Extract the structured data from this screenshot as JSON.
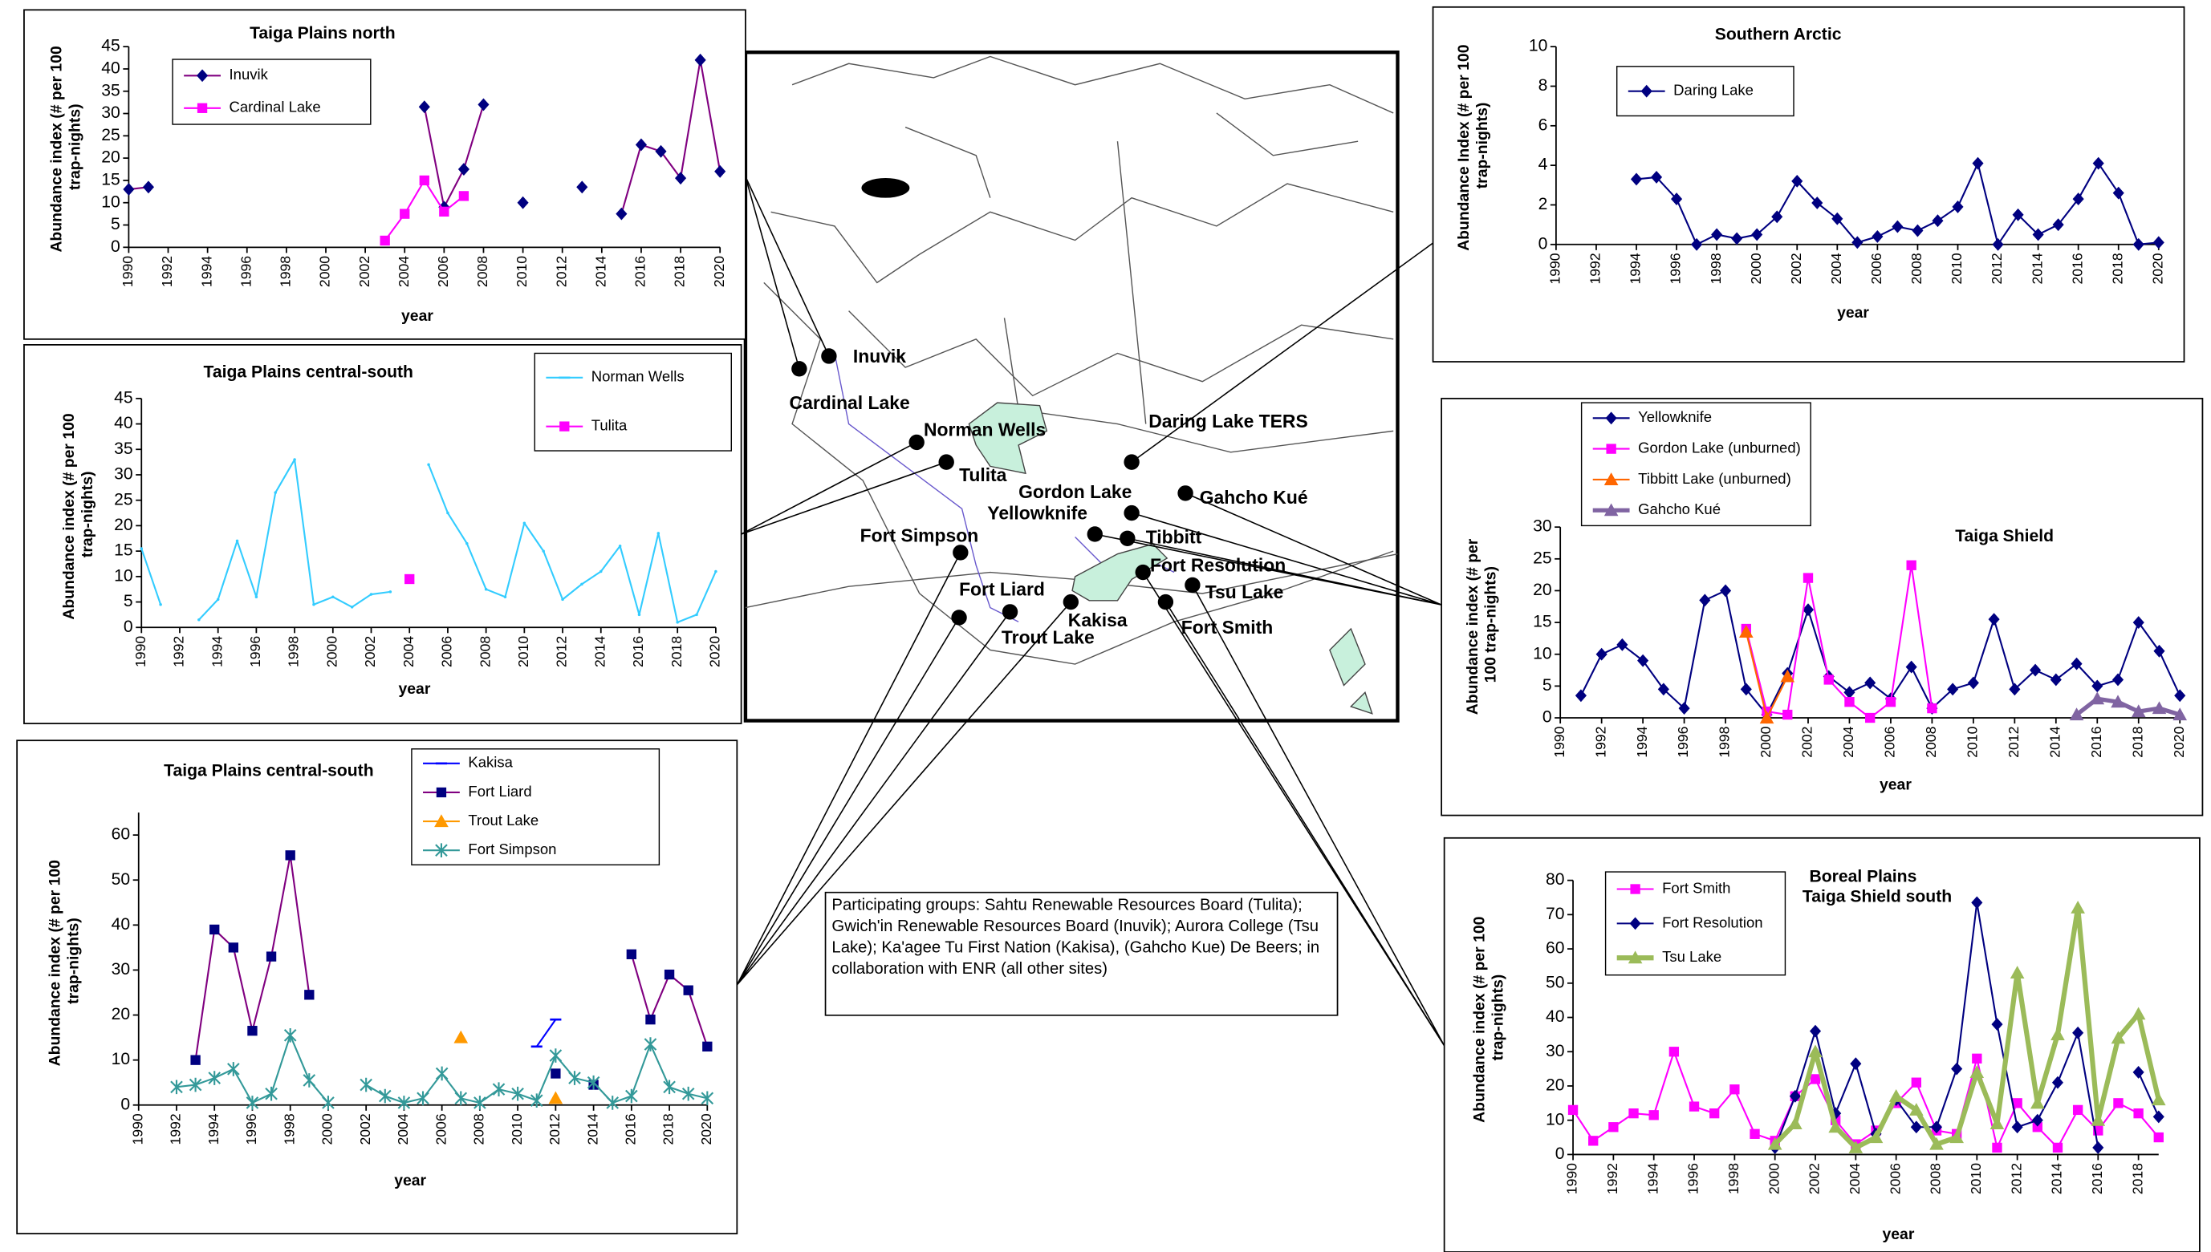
{
  "chart_data": [
    {
      "type": "line",
      "title": "Taiga Plains north",
      "ylabel": "Abundance index (# per 100 trap-nights)",
      "xlabel": "year",
      "x": [
        1990,
        1991,
        1992,
        1993,
        1994,
        1995,
        1996,
        1997,
        1998,
        1999,
        2000,
        2001,
        2002,
        2003,
        2004,
        2005,
        2006,
        2007,
        2008,
        2009,
        2010,
        2011,
        2012,
        2013,
        2014,
        2015,
        2016,
        2017,
        2018,
        2019,
        2020
      ],
      "xlim": [
        1990,
        2020
      ],
      "xticks": [
        1990,
        1992,
        1994,
        1996,
        1998,
        2000,
        2002,
        2004,
        2006,
        2008,
        2010,
        2012,
        2014,
        2016,
        2018,
        2020
      ],
      "ylim": [
        0,
        45
      ],
      "yticks": [
        0,
        5,
        10,
        15,
        20,
        25,
        30,
        35,
        40,
        45
      ],
      "series": [
        {
          "name": "Inuvik",
          "color": "#800080",
          "marker_color": "#000080",
          "marker": "diamond",
          "values": [
            13,
            13.5,
            null,
            null,
            null,
            null,
            null,
            null,
            null,
            null,
            null,
            null,
            null,
            null,
            null,
            31.5,
            9,
            17.5,
            32,
            null,
            10,
            null,
            null,
            13.5,
            null,
            7.5,
            23,
            21.5,
            15.5,
            42,
            17
          ]
        },
        {
          "name": "Cardinal Lake",
          "color": "#ff00ff",
          "marker": "square",
          "values": [
            null,
            null,
            null,
            null,
            null,
            null,
            null,
            null,
            null,
            null,
            null,
            null,
            null,
            1.5,
            7.5,
            15,
            8,
            11.5,
            null,
            null,
            null,
            null,
            null,
            null,
            null,
            null,
            null,
            null,
            null,
            null,
            null
          ]
        }
      ]
    },
    {
      "type": "line",
      "title": "Taiga Plains central-south",
      "ylabel": "Abundance index (# per 100 trap-nights)",
      "xlabel": "year",
      "x": [
        1990,
        1991,
        1992,
        1993,
        1994,
        1995,
        1996,
        1997,
        1998,
        1999,
        2000,
        2001,
        2002,
        2003,
        2004,
        2005,
        2006,
        2007,
        2008,
        2009,
        2010,
        2011,
        2012,
        2013,
        2014,
        2015,
        2016,
        2017,
        2018,
        2019,
        2020
      ],
      "xlim": [
        1990,
        2020
      ],
      "xticks": [
        1990,
        1992,
        1994,
        1996,
        1998,
        2000,
        2002,
        2004,
        2006,
        2008,
        2010,
        2012,
        2014,
        2016,
        2018,
        2020
      ],
      "ylim": [
        0,
        45
      ],
      "yticks": [
        0,
        5,
        10,
        15,
        20,
        25,
        30,
        35,
        40,
        45
      ],
      "series": [
        {
          "name": "Norman Wells",
          "color": "#33ccff",
          "marker": "none",
          "values": [
            15.5,
            4.5,
            null,
            1.5,
            5.5,
            17,
            6,
            26.5,
            33,
            4.5,
            6,
            4,
            6.5,
            7,
            null,
            32,
            22.5,
            16.5,
            7.5,
            6,
            20.5,
            15,
            5.5,
            8.5,
            11,
            16,
            2.5,
            18.5,
            1,
            2.5,
            11
          ]
        },
        {
          "name": "Tulita",
          "color": "#ff00ff",
          "marker": "square",
          "values": [
            null,
            null,
            null,
            null,
            null,
            null,
            null,
            null,
            null,
            null,
            null,
            null,
            null,
            null,
            9.5,
            null,
            null,
            null,
            null,
            null,
            null,
            null,
            null,
            null,
            null,
            null,
            null,
            null,
            null,
            null,
            null
          ]
        }
      ]
    },
    {
      "type": "line",
      "title": "Taiga Plains central-south",
      "ylabel": "Abundance index (# per 100 trap-nights)",
      "xlabel": "year",
      "x": [
        1990,
        1991,
        1992,
        1993,
        1994,
        1995,
        1996,
        1997,
        1998,
        1999,
        2000,
        2001,
        2002,
        2003,
        2004,
        2005,
        2006,
        2007,
        2008,
        2009,
        2010,
        2011,
        2012,
        2013,
        2014,
        2015,
        2016,
        2017,
        2018,
        2019,
        2020
      ],
      "xlim": [
        1990,
        2020
      ],
      "xticks": [
        1990,
        1992,
        1994,
        1996,
        1998,
        2000,
        2002,
        2004,
        2006,
        2008,
        2010,
        2012,
        2014,
        2016,
        2018,
        2020
      ],
      "ylim": [
        0,
        65
      ],
      "yticks": [
        0,
        10,
        20,
        30,
        40,
        50,
        60
      ],
      "series": [
        {
          "name": "Kakisa",
          "color": "#0000ff",
          "marker": "dash",
          "values": [
            null,
            null,
            null,
            null,
            null,
            null,
            null,
            null,
            null,
            null,
            null,
            null,
            null,
            null,
            null,
            null,
            null,
            null,
            null,
            null,
            null,
            13,
            19,
            null,
            null,
            null,
            null,
            null,
            null,
            null,
            null
          ]
        },
        {
          "name": "Fort Liard",
          "color": "#800080",
          "marker_color": "#000080",
          "marker": "square",
          "values": [
            null,
            null,
            null,
            10,
            39,
            35,
            16.5,
            33,
            55.5,
            24.5,
            null,
            null,
            null,
            null,
            null,
            null,
            null,
            null,
            null,
            null,
            null,
            null,
            7,
            null,
            4.5,
            null,
            33.5,
            19,
            29,
            25.5,
            13
          ]
        },
        {
          "name": "Trout Lake",
          "color": "#ff9900",
          "marker": "triangle",
          "values": [
            null,
            null,
            null,
            null,
            null,
            null,
            null,
            null,
            null,
            null,
            null,
            null,
            null,
            null,
            null,
            null,
            null,
            15,
            null,
            null,
            null,
            null,
            1.5,
            null,
            null,
            null,
            null,
            null,
            null,
            null,
            null
          ]
        },
        {
          "name": "Fort Simpson",
          "color": "#339999",
          "marker": "star",
          "values": [
            null,
            null,
            4,
            4.5,
            6,
            8,
            0.5,
            2.5,
            15.5,
            5.5,
            0.5,
            null,
            4.5,
            2,
            0.5,
            1.5,
            7,
            1.5,
            0.5,
            3.5,
            2.5,
            1,
            11,
            6,
            5,
            0.5,
            2,
            13.5,
            4,
            2.5,
            1.5
          ]
        }
      ]
    },
    {
      "type": "line",
      "title": "Southern Arctic",
      "ylabel": "Abundance Index (# per 100 trap-nights)",
      "xlabel": "year",
      "x": [
        1990,
        1991,
        1992,
        1993,
        1994,
        1995,
        1996,
        1997,
        1998,
        1999,
        2000,
        2001,
        2002,
        2003,
        2004,
        2005,
        2006,
        2007,
        2008,
        2009,
        2010,
        2011,
        2012,
        2013,
        2014,
        2015,
        2016,
        2017,
        2018,
        2019,
        2020
      ],
      "xlim": [
        1990,
        2020
      ],
      "xticks": [
        1990,
        1992,
        1994,
        1996,
        1998,
        2000,
        2002,
        2004,
        2006,
        2008,
        2010,
        2012,
        2014,
        2016,
        2018,
        2020
      ],
      "ylim": [
        0,
        10
      ],
      "yticks": [
        0,
        2,
        4,
        6,
        8,
        10
      ],
      "series": [
        {
          "name": "Daring Lake",
          "color": "#000080",
          "marker": "diamond",
          "values": [
            null,
            null,
            null,
            null,
            3.3,
            3.4,
            2.3,
            0,
            0.5,
            0.3,
            0.5,
            1.4,
            3.2,
            2.1,
            1.3,
            0.1,
            0.4,
            0.9,
            0.7,
            1.2,
            1.9,
            4.1,
            0,
            1.5,
            0.5,
            1,
            2.3,
            4.1,
            2.6,
            0,
            0.1
          ]
        }
      ]
    },
    {
      "type": "line",
      "title": "Taiga  Shield",
      "ylabel": "Abundance  index (# per 100 trap-nights)",
      "xlabel": "year",
      "x": [
        1990,
        1991,
        1992,
        1993,
        1994,
        1995,
        1996,
        1997,
        1998,
        1999,
        2000,
        2001,
        2002,
        2003,
        2004,
        2005,
        2006,
        2007,
        2008,
        2009,
        2010,
        2011,
        2012,
        2013,
        2014,
        2015,
        2016,
        2017,
        2018,
        2019,
        2020
      ],
      "xlim": [
        1990,
        2020
      ],
      "xticks": [
        1990,
        1992,
        1994,
        1996,
        1998,
        2000,
        2002,
        2004,
        2006,
        2008,
        2010,
        2012,
        2014,
        2016,
        2018,
        2020
      ],
      "ylim": [
        0,
        30
      ],
      "yticks": [
        0,
        5,
        10,
        15,
        20,
        25,
        30
      ],
      "series": [
        {
          "name": "Yellowknife",
          "color": "#000080",
          "marker": "diamond",
          "values": [
            null,
            3.5,
            10,
            11.5,
            9,
            4.5,
            1.5,
            18.5,
            20,
            4.5,
            0.5,
            7,
            17,
            6.5,
            4,
            5.5,
            3,
            8,
            1.5,
            4.5,
            5.5,
            15.5,
            4.5,
            7.5,
            6,
            8.5,
            5,
            6,
            15,
            10.5,
            3.5
          ]
        },
        {
          "name": "Gordon Lake (unburned)",
          "color": "#ff00ff",
          "marker": "square",
          "values": [
            null,
            null,
            null,
            null,
            null,
            null,
            null,
            null,
            null,
            14,
            1,
            0.5,
            22,
            6,
            2.5,
            0,
            2.5,
            24,
            1.5,
            null,
            null,
            null,
            null,
            null,
            null,
            null,
            null,
            null,
            null,
            null,
            null
          ]
        },
        {
          "name": "Tibbitt Lake (unburned)",
          "color": "#ff6600",
          "marker": "triangle",
          "values": [
            null,
            null,
            null,
            null,
            null,
            null,
            null,
            null,
            null,
            13.5,
            0,
            6.5,
            null,
            null,
            null,
            null,
            null,
            null,
            null,
            null,
            null,
            null,
            null,
            null,
            null,
            null,
            null,
            null,
            null,
            null,
            null
          ]
        },
        {
          "name": "Gahcho Kué",
          "color": "#8064a2",
          "marker": "triangle",
          "line_width": 3,
          "values": [
            null,
            null,
            null,
            null,
            null,
            null,
            null,
            null,
            null,
            null,
            null,
            null,
            null,
            null,
            null,
            null,
            null,
            null,
            null,
            null,
            null,
            null,
            null,
            null,
            null,
            0.5,
            3,
            2.5,
            1,
            1.5,
            0.5
          ]
        }
      ]
    },
    {
      "type": "line",
      "title": "Boreal Plains",
      "subtitle": "Taiga Shield south",
      "ylabel": "Abundance index (# per 100 trap-nights)",
      "xlabel": "year",
      "x": [
        1990,
        1991,
        1992,
        1993,
        1994,
        1995,
        1996,
        1997,
        1998,
        1999,
        2000,
        2001,
        2002,
        2003,
        2004,
        2005,
        2006,
        2007,
        2008,
        2009,
        2010,
        2011,
        2012,
        2013,
        2014,
        2015,
        2016,
        2017,
        2018,
        2019
      ],
      "xlim": [
        1990,
        2019
      ],
      "xticks": [
        1990,
        1992,
        1994,
        1996,
        1998,
        2000,
        2002,
        2004,
        2006,
        2008,
        2010,
        2012,
        2014,
        2016,
        2018
      ],
      "ylim": [
        0,
        80
      ],
      "yticks": [
        0,
        10,
        20,
        30,
        40,
        50,
        60,
        70,
        80
      ],
      "series": [
        {
          "name": "Fort Smith",
          "color": "#ff00ff",
          "marker": "square",
          "values": [
            13,
            4,
            8,
            12,
            11.5,
            30,
            14,
            12,
            19,
            6,
            4,
            17,
            22,
            10,
            3,
            7,
            15,
            21,
            7,
            6,
            28,
            2,
            15,
            8,
            2,
            13,
            7,
            15,
            12,
            5
          ]
        },
        {
          "name": "Fort Resolution",
          "color": "#000080",
          "marker": "diamond",
          "values": [
            null,
            null,
            null,
            null,
            null,
            null,
            null,
            null,
            null,
            null,
            2,
            17,
            36,
            12,
            26.5,
            6,
            16,
            8,
            8,
            25,
            73.5,
            38,
            8,
            10,
            21,
            35.5,
            2,
            null,
            24,
            11
          ]
        },
        {
          "name": "Tsu Lake",
          "color": "#9bbb59",
          "marker": "triangle",
          "line_width": 3.5,
          "values": [
            null,
            null,
            null,
            null,
            null,
            null,
            null,
            null,
            null,
            null,
            3,
            9,
            30,
            8,
            2,
            5,
            17,
            13,
            3,
            5,
            24,
            9,
            53,
            15,
            35,
            72,
            10,
            34,
            41,
            16
          ]
        }
      ]
    }
  ],
  "map": {
    "sites": [
      "Inuvik",
      "Cardinal Lake",
      "Norman Wells",
      "Tulita",
      "Fort Simpson",
      "Fort Liard",
      "Trout Lake",
      "Kakisa",
      "Yellowknife",
      "Gordon Lake",
      "Tibbitt",
      "Daring Lake TERS",
      "Gahcho Kué",
      "Fort Resolution",
      "Tsu Lake",
      "Fort Smith"
    ],
    "note": "Participating groups:  Sahtu Renewable Resources Board (Tulita); Gwich'in Renewable Resources Board (Inuvik); Aurora College (Tsu Lake); Ka'agee Tu First Nation (Kakisa), (Gahcho Kue) De Beers; in collaboration with ENR (all other sites)"
  }
}
